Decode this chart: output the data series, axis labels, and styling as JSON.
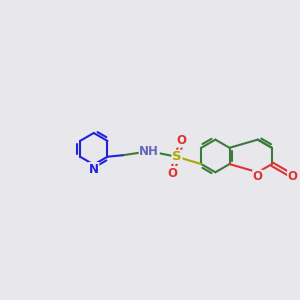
{
  "background_color": "#e8e8ec",
  "bond_color": "#3a7a3a",
  "bond_width": 1.5,
  "atom_colors": {
    "N_py": "#2222dd",
    "N_nh": "#6666bb",
    "S": "#aaaa00",
    "O": "#dd3333",
    "C": "#3a7a3a"
  },
  "font_size": 8.5,
  "figsize": [
    3.0,
    3.0
  ],
  "dpi": 100
}
